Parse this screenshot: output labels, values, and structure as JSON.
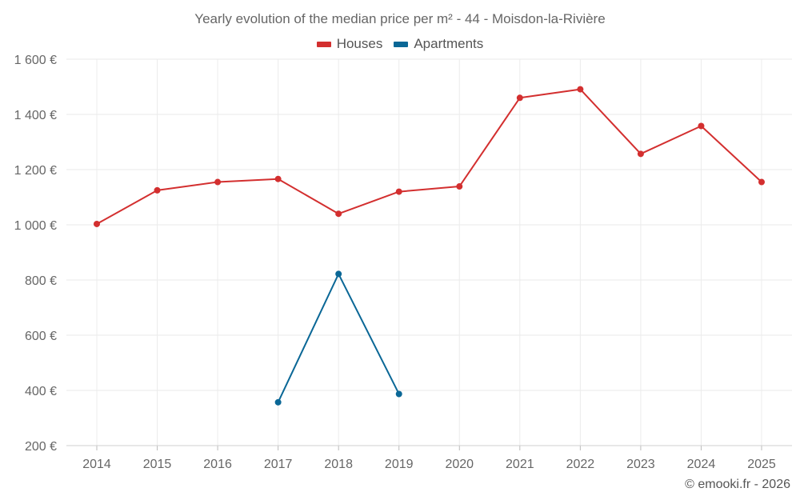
{
  "chart_data": {
    "type": "line",
    "title": "Yearly evolution of the median price per m² - 44 - Moisdon-la-Rivière",
    "xlabel": "",
    "ylabel": "",
    "categories": [
      "2014",
      "2015",
      "2016",
      "2017",
      "2018",
      "2019",
      "2020",
      "2021",
      "2022",
      "2023",
      "2024",
      "2025"
    ],
    "ylim": [
      200,
      1600
    ],
    "yticks": [
      200,
      400,
      600,
      800,
      1000,
      1200,
      1400,
      1600
    ],
    "ytick_labels": [
      "200 €",
      "400 €",
      "600 €",
      "800 €",
      "1 000 €",
      "1 200 €",
      "1 400 €",
      "1 600 €"
    ],
    "grid": true,
    "legend_position": "top-center",
    "series": [
      {
        "name": "Houses",
        "color": "#d32f2f",
        "values": [
          1003,
          1125,
          1155,
          1166,
          1040,
          1120,
          1139,
          1460,
          1491,
          1257,
          1358,
          1155
        ]
      },
      {
        "name": "Apartments",
        "color": "#0a6796",
        "values": [
          null,
          null,
          null,
          357,
          822,
          387,
          null,
          null,
          null,
          null,
          null,
          null
        ]
      }
    ]
  },
  "credit": "© emooki.fr - 2026"
}
